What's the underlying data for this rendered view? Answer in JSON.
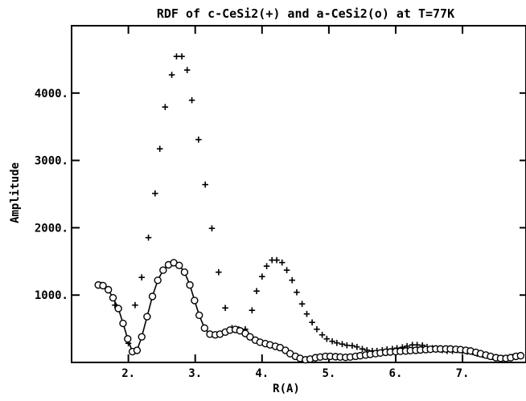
{
  "chart_data": {
    "type": "scatter",
    "title": "RDF of c-CeSi2(+) and a-CeSi2(o) at T=77K",
    "xlabel": "R(A)",
    "ylabel": "Amplitude",
    "xlim": [
      1.15,
      7.95
    ],
    "ylim": [
      0,
      5000
    ],
    "x_tick_labels": [
      "2.",
      "3.",
      "4.",
      "5.",
      "6.",
      "7."
    ],
    "x_tick_values": [
      2,
      3,
      4,
      5,
      6,
      7
    ],
    "y_tick_labels": [
      "1000.",
      "2000.",
      "3000.",
      "4000."
    ],
    "y_tick_values": [
      1000,
      2000,
      3000,
      4000
    ],
    "grid": false,
    "legend": "none (series identified in title)",
    "series": [
      {
        "name": "c-CeSi2",
        "marker": "+",
        "points": [
          [
            1.6,
            1160
          ],
          [
            1.8,
            860
          ],
          [
            2.0,
            290
          ],
          [
            2.1,
            860
          ],
          [
            2.2,
            1270
          ],
          [
            2.3,
            1860
          ],
          [
            2.4,
            2520
          ],
          [
            2.47,
            3180
          ],
          [
            2.55,
            3800
          ],
          [
            2.65,
            4280
          ],
          [
            2.72,
            4550
          ],
          [
            2.8,
            4550
          ],
          [
            2.88,
            4350
          ],
          [
            2.95,
            3900
          ],
          [
            3.05,
            3320
          ],
          [
            3.15,
            2650
          ],
          [
            3.25,
            2000
          ],
          [
            3.35,
            1350
          ],
          [
            3.45,
            820
          ],
          [
            3.55,
            520
          ],
          [
            3.65,
            500
          ],
          [
            3.75,
            500
          ],
          [
            3.85,
            780
          ],
          [
            3.92,
            1070
          ],
          [
            4.0,
            1280
          ],
          [
            4.07,
            1440
          ],
          [
            4.15,
            1530
          ],
          [
            4.22,
            1530
          ],
          [
            4.3,
            1490
          ],
          [
            4.37,
            1380
          ],
          [
            4.45,
            1230
          ],
          [
            4.52,
            1050
          ],
          [
            4.6,
            880
          ],
          [
            4.67,
            730
          ],
          [
            4.75,
            600
          ],
          [
            4.82,
            500
          ],
          [
            4.9,
            420
          ],
          [
            4.97,
            360
          ],
          [
            5.05,
            320
          ],
          [
            5.12,
            300
          ],
          [
            5.2,
            280
          ],
          [
            5.27,
            265
          ],
          [
            5.35,
            255
          ],
          [
            5.42,
            240
          ],
          [
            5.5,
            210
          ],
          [
            5.57,
            190
          ],
          [
            5.65,
            180
          ],
          [
            5.72,
            180
          ],
          [
            5.8,
            190
          ],
          [
            5.87,
            200
          ],
          [
            5.95,
            210
          ],
          [
            6.02,
            220
          ],
          [
            6.1,
            230
          ],
          [
            6.17,
            250
          ],
          [
            6.25,
            270
          ],
          [
            6.32,
            270
          ],
          [
            6.4,
            260
          ],
          [
            6.47,
            240
          ],
          [
            6.55,
            220
          ],
          [
            6.62,
            200
          ],
          [
            6.7,
            190
          ],
          [
            6.77,
            180
          ],
          [
            6.85,
            180
          ],
          [
            6.92,
            190
          ],
          [
            7.0,
            180
          ],
          [
            7.07,
            170
          ],
          [
            7.15,
            160
          ],
          [
            7.22,
            140
          ],
          [
            7.3,
            120
          ],
          [
            7.37,
            110
          ],
          [
            7.45,
            90
          ],
          [
            7.52,
            80
          ],
          [
            7.6,
            70
          ],
          [
            7.67,
            70
          ],
          [
            7.75,
            90
          ],
          [
            7.85,
            110
          ]
        ]
      },
      {
        "name": "a-CeSi2",
        "marker": "o",
        "points": [
          [
            1.55,
            1150
          ],
          [
            1.62,
            1140
          ],
          [
            1.7,
            1080
          ],
          [
            1.77,
            960
          ],
          [
            1.85,
            800
          ],
          [
            1.92,
            580
          ],
          [
            1.99,
            350
          ],
          [
            2.06,
            160
          ],
          [
            2.13,
            180
          ],
          [
            2.2,
            380
          ],
          [
            2.28,
            680
          ],
          [
            2.36,
            980
          ],
          [
            2.44,
            1220
          ],
          [
            2.52,
            1370
          ],
          [
            2.6,
            1450
          ],
          [
            2.68,
            1480
          ],
          [
            2.76,
            1440
          ],
          [
            2.84,
            1340
          ],
          [
            2.92,
            1150
          ],
          [
            2.99,
            920
          ],
          [
            3.06,
            700
          ],
          [
            3.14,
            510
          ],
          [
            3.22,
            420
          ],
          [
            3.3,
            410
          ],
          [
            3.37,
            420
          ],
          [
            3.45,
            450
          ],
          [
            3.52,
            480
          ],
          [
            3.6,
            490
          ],
          [
            3.67,
            470
          ],
          [
            3.75,
            430
          ],
          [
            3.82,
            380
          ],
          [
            3.9,
            330
          ],
          [
            3.97,
            300
          ],
          [
            4.05,
            280
          ],
          [
            4.12,
            260
          ],
          [
            4.2,
            240
          ],
          [
            4.27,
            220
          ],
          [
            4.35,
            180
          ],
          [
            4.42,
            130
          ],
          [
            4.5,
            90
          ],
          [
            4.57,
            60
          ],
          [
            4.65,
            40
          ],
          [
            4.72,
            50
          ],
          [
            4.8,
            70
          ],
          [
            4.87,
            80
          ],
          [
            4.95,
            90
          ],
          [
            5.02,
            90
          ],
          [
            5.1,
            85
          ],
          [
            5.17,
            80
          ],
          [
            5.25,
            75
          ],
          [
            5.32,
            80
          ],
          [
            5.4,
            90
          ],
          [
            5.47,
            100
          ],
          [
            5.55,
            110
          ],
          [
            5.62,
            120
          ],
          [
            5.7,
            130
          ],
          [
            5.77,
            140
          ],
          [
            5.85,
            150
          ],
          [
            5.92,
            155
          ],
          [
            6.0,
            160
          ],
          [
            6.07,
            165
          ],
          [
            6.15,
            170
          ],
          [
            6.22,
            175
          ],
          [
            6.3,
            180
          ],
          [
            6.37,
            185
          ],
          [
            6.45,
            190
          ],
          [
            6.52,
            195
          ],
          [
            6.6,
            200
          ],
          [
            6.67,
            200
          ],
          [
            6.75,
            200
          ],
          [
            6.82,
            200
          ],
          [
            6.9,
            195
          ],
          [
            6.97,
            190
          ],
          [
            7.05,
            180
          ],
          [
            7.12,
            170
          ],
          [
            7.2,
            150
          ],
          [
            7.27,
            130
          ],
          [
            7.35,
            110
          ],
          [
            7.42,
            90
          ],
          [
            7.5,
            70
          ],
          [
            7.57,
            60
          ],
          [
            7.65,
            60
          ],
          [
            7.72,
            70
          ],
          [
            7.8,
            90
          ],
          [
            7.87,
            100
          ]
        ]
      }
    ]
  }
}
